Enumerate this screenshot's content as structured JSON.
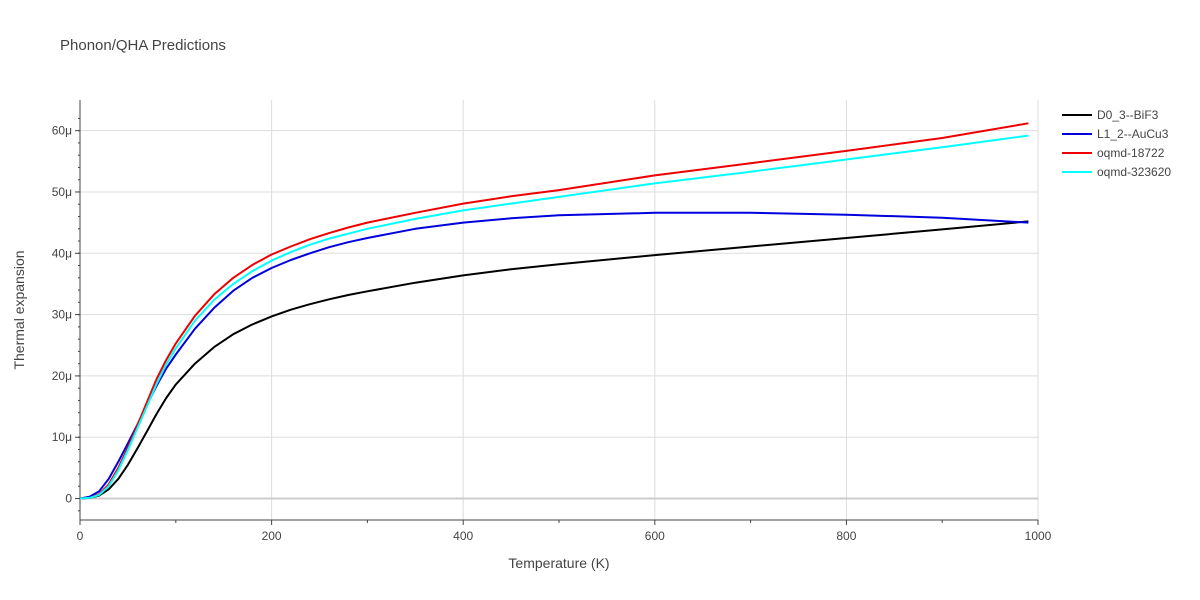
{
  "chart_data": {
    "type": "line",
    "title": "Phonon/QHA Predictions",
    "xlabel": "Temperature (K)",
    "ylabel": "Thermal expansion",
    "xlim": [
      0,
      1000
    ],
    "ylim": [
      -3.5e-06,
      6.5e-05
    ],
    "x_ticks": [
      0,
      200,
      400,
      600,
      800,
      1000
    ],
    "x_tick_labels": [
      "0",
      "200",
      "400",
      "600",
      "800",
      "1000"
    ],
    "y_ticks": [
      0,
      1e-05,
      2e-05,
      3e-05,
      4e-05,
      5e-05,
      6e-05
    ],
    "y_tick_labels": [
      "0",
      "10μ",
      "20μ",
      "30μ",
      "40μ",
      "50μ",
      "60μ"
    ],
    "grid": true,
    "legend_position": "top-right",
    "series": [
      {
        "name": "D0_3--BiF3",
        "color": "#000000",
        "x": [
          0,
          10,
          20,
          30,
          40,
          50,
          60,
          70,
          80,
          90,
          100,
          120,
          140,
          160,
          180,
          200,
          220,
          240,
          260,
          280,
          300,
          350,
          400,
          450,
          500,
          600,
          700,
          800,
          900,
          990
        ],
        "y": [
          0,
          1e-07,
          5e-07,
          1.5e-06,
          3.2e-06,
          5.5e-06,
          8.2e-06,
          1.1e-05,
          1.38e-05,
          1.64e-05,
          1.86e-05,
          2.2e-05,
          2.47e-05,
          2.68e-05,
          2.84e-05,
          2.97e-05,
          3.08e-05,
          3.17e-05,
          3.25e-05,
          3.32e-05,
          3.38e-05,
          3.52e-05,
          3.64e-05,
          3.74e-05,
          3.82e-05,
          3.97e-05,
          4.11e-05,
          4.25e-05,
          4.39e-05,
          4.52e-05
        ]
      },
      {
        "name": "L1_2--AuCu3",
        "color": "#0000dd",
        "x": [
          0,
          10,
          20,
          30,
          40,
          50,
          60,
          70,
          80,
          90,
          100,
          120,
          140,
          160,
          180,
          200,
          220,
          240,
          260,
          280,
          300,
          350,
          400,
          450,
          500,
          600,
          700,
          800,
          900,
          990
        ],
        "y": [
          0,
          3e-07,
          1.2e-06,
          3.2e-06,
          6e-06,
          9e-06,
          1.21e-05,
          1.53e-05,
          1.84e-05,
          2.12e-05,
          2.35e-05,
          2.77e-05,
          3.11e-05,
          3.39e-05,
          3.6e-05,
          3.76e-05,
          3.89e-05,
          4e-05,
          4.1e-05,
          4.18e-05,
          4.25e-05,
          4.4e-05,
          4.5e-05,
          4.57e-05,
          4.62e-05,
          4.66e-05,
          4.66e-05,
          4.63e-05,
          4.58e-05,
          4.5e-05
        ]
      },
      {
        "name": "oqmd-18722",
        "color": "#ee0000",
        "x": [
          0,
          10,
          20,
          30,
          40,
          50,
          60,
          70,
          80,
          90,
          100,
          120,
          140,
          160,
          180,
          200,
          220,
          240,
          260,
          280,
          300,
          350,
          400,
          450,
          500,
          600,
          700,
          800,
          900,
          990
        ],
        "y": [
          0,
          1e-07,
          7e-07,
          2.3e-06,
          5e-06,
          8.3e-06,
          1.2e-05,
          1.58e-05,
          1.95e-05,
          2.26e-05,
          2.53e-05,
          2.98e-05,
          3.33e-05,
          3.6e-05,
          3.81e-05,
          3.98e-05,
          4.11e-05,
          4.23e-05,
          4.33e-05,
          4.42e-05,
          4.5e-05,
          4.66e-05,
          4.81e-05,
          4.93e-05,
          5.03e-05,
          5.27e-05,
          5.47e-05,
          5.67e-05,
          5.88e-05,
          6.12e-05
        ]
      },
      {
        "name": "oqmd-323620",
        "color": "#00ffff",
        "x": [
          0,
          10,
          20,
          30,
          40,
          50,
          60,
          70,
          80,
          90,
          100,
          120,
          140,
          160,
          180,
          200,
          220,
          240,
          260,
          280,
          300,
          350,
          400,
          450,
          500,
          600,
          700,
          800,
          900,
          990
        ],
        "y": [
          0,
          1e-07,
          6e-07,
          2e-06,
          4.6e-06,
          7.9e-06,
          1.15e-05,
          1.51e-05,
          1.87e-05,
          2.19e-05,
          2.45e-05,
          2.9e-05,
          3.24e-05,
          3.5e-05,
          3.71e-05,
          3.88e-05,
          4.02e-05,
          4.14e-05,
          4.24e-05,
          4.32e-05,
          4.4e-05,
          4.56e-05,
          4.7e-05,
          4.81e-05,
          4.92e-05,
          5.14e-05,
          5.33e-05,
          5.53e-05,
          5.73e-05,
          5.92e-05
        ]
      }
    ]
  }
}
